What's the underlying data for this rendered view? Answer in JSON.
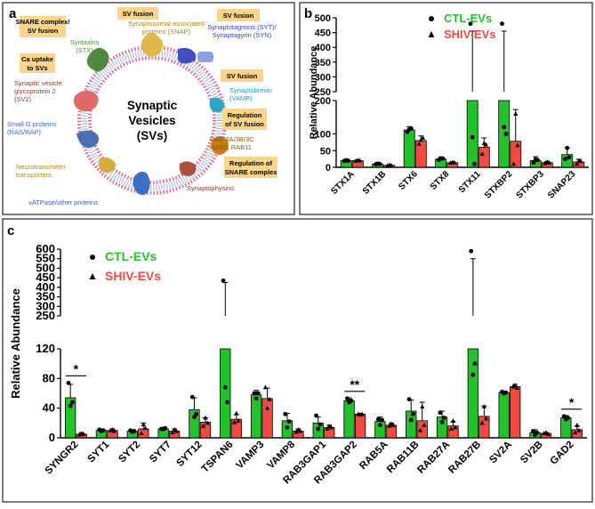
{
  "panel_a": {
    "letter": "a",
    "center_label_1": "Synaptic",
    "center_label_2": "Vesicles",
    "center_label_3": "(SVs)",
    "boxes": {
      "snare_sv_fusion_1": "SNARE complex/",
      "snare_sv_fusion_2": "SV fusion",
      "sv_fusion_top": "SV fusion",
      "sv_fusion_right": "SV fusion",
      "sv_fusion_right2": "SV fusion",
      "ca_uptake_1": "Ca uptake",
      "ca_uptake_2": "to SVs",
      "reg_sv_fusion_1": "Regulation",
      "reg_sv_fusion_2": "of SV fusion",
      "reg_snare_1": "Regulation of",
      "reg_snare_2": "SNARE complex"
    },
    "labels": {
      "syntaxins_1": "Syntaxins",
      "syntaxins_2": "(STX)",
      "snap_1": "Synaptosomal-associated",
      "snap_2": "proteins (SNAP)",
      "syt_1": "Synaptotagmins (SYT)/",
      "syt_2": "Synaptogyrin (SYN)",
      "sv2_1": "Synaptic vesicle",
      "sv2_2": "glycoprotein 2",
      "sv2_3": "(SV2)",
      "vamp_1": "Synaptobrevin",
      "vamp_2": "(VAMP)",
      "small_g_1": "Small G proteins",
      "small_g_2": "(RAS/RAP)",
      "rab_1": "RAB 3A/3B/3C",
      "rab_2": "RAB5, RAB11",
      "nt_1": "Neurotransmitter",
      "nt_2": "transporters",
      "syp": "Synaptophysins",
      "vatpase": "vATPase/other proteins"
    },
    "colors": {
      "syntaxin": "#4f8a3c",
      "snap": "#e0b84a",
      "syt": "#3f4fbf",
      "sv2": "#e06a6a",
      "vamp": "#2aa6c9",
      "small_g": "#4a6fb5",
      "rab": "#c87d12",
      "nt": "#d9ac3a",
      "syp": "#a8543a",
      "vatpase": "#3b6ec5",
      "lipid": "#e0609a",
      "box": "#fcd58a"
    }
  },
  "chart_data": [
    {
      "panel": "b",
      "type": "bar",
      "ylabel": "Relative Abundance",
      "categories": [
        "STX1A",
        "STX1B",
        "STX6",
        "STX8",
        "STX11",
        "STXBP2",
        "STXBP3",
        "SNAP23"
      ],
      "yticks_lower": [
        "0",
        "50",
        "100",
        "200"
      ],
      "yticks_upper": [
        "250",
        "300",
        "350",
        "400",
        "450",
        "500"
      ],
      "ylim_lower": [
        0,
        200
      ],
      "ylim_upper": [
        250,
        500
      ],
      "series": [
        {
          "name": "CTL-EVs",
          "color": "#22c22a",
          "values": [
            20,
            10,
            112,
            25,
            250,
            250,
            20,
            38
          ],
          "errors": [
            3,
            3,
            10,
            6,
            205,
            205,
            12,
            20
          ],
          "points": [
            [
              19,
              21,
              20
            ],
            [
              9,
              11,
              10
            ],
            [
              106,
              114,
              116
            ],
            [
              22,
              27,
              26
            ],
            [
              480,
              90,
              10
            ],
            [
              480,
              120,
              100
            ],
            [
              14,
              24,
              22
            ],
            [
              25,
              58,
              30
            ]
          ]
        },
        {
          "name": "SHIV-EVs",
          "color": "#f04a42",
          "values": [
            20,
            6,
            80,
            14,
            60,
            78,
            14,
            16
          ],
          "errors": [
            3,
            2,
            14,
            3,
            28,
            95,
            4,
            8
          ],
          "points": [
            [
              19,
              21,
              20
            ],
            [
              5,
              7,
              6
            ],
            [
              70,
              82,
              88
            ],
            [
              13,
              15,
              14
            ],
            [
              40,
              72,
              68
            ],
            [
              10,
              160,
              66
            ],
            [
              12,
              16,
              14
            ],
            [
              10,
              20,
              18
            ]
          ]
        }
      ],
      "legend": [
        "CTL-EVs",
        "SHIV-EVs"
      ],
      "legend_position": "top-right"
    },
    {
      "panel": "c",
      "type": "bar",
      "ylabel": "Relative Abundance",
      "categories": [
        "SYNGR2",
        "SYT1",
        "SYT2",
        "SYT7",
        "SYT12",
        "TSPAN6",
        "VAMP3",
        "VAMP8",
        "RAB3GAP1",
        "RAB3GAP2",
        "RAB5A",
        "RAB11B",
        "RAB27A",
        "RAB27B",
        "SV2A",
        "SV2B",
        "GAD2"
      ],
      "yticks_lower": [
        "0",
        "40",
        "80",
        "120"
      ],
      "yticks_upper": [
        "250",
        "300",
        "350",
        "400",
        "450",
        "500",
        "550",
        "600"
      ],
      "ylim_lower": [
        0,
        120
      ],
      "ylim_upper": [
        250,
        600
      ],
      "series": [
        {
          "name": "CTL-EVs",
          "color": "#22c22a",
          "values": [
            54,
            10,
            9,
            12,
            38,
            250,
            58,
            23,
            20,
            50,
            22,
            36,
            28,
            250,
            61,
            7,
            27
          ],
          "errors": [
            18,
            2,
            2,
            2,
            16,
            175,
            6,
            10,
            8,
            4,
            6,
            15,
            8,
            300,
            2,
            4,
            3
          ],
          "points": [
            [
              74,
              43,
              48
            ],
            [
              11,
              9,
              10
            ],
            [
              10,
              8,
              9
            ],
            [
              12,
              12,
              13
            ],
            [
              55,
              28,
              32
            ],
            [
              435,
              68,
              48
            ],
            [
              60,
              53,
              60
            ],
            [
              32,
              14,
              22
            ],
            [
              30,
              12,
              18
            ],
            [
              53,
              48,
              50
            ],
            [
              25,
              17,
              24
            ],
            [
              52,
              24,
              32
            ],
            [
              34,
              21,
              27
            ],
            [
              590,
              85,
              100
            ],
            [
              62,
              60,
              61
            ],
            [
              9,
              4,
              7
            ],
            [
              29,
              25,
              27
            ]
          ]
        },
        {
          "name": "SHIV-EVs",
          "color": "#f04a42",
          "values": [
            5,
            10,
            12,
            9,
            21,
            25,
            53,
            9,
            14,
            32,
            17,
            23,
            16,
            29,
            69,
            6,
            11
          ],
          "errors": [
            2,
            2,
            8,
            3,
            6,
            6,
            14,
            3,
            3,
            1,
            3,
            25,
            6,
            14,
            3,
            1,
            5
          ],
          "points": [
            [
              4,
              6,
              5
            ],
            [
              10,
              11,
              9
            ],
            [
              6,
              18,
              13
            ],
            [
              7,
              11,
              9
            ],
            [
              16,
              27,
              20
            ],
            [
              21,
              33,
              23
            ],
            [
              68,
              40,
              52
            ],
            [
              8,
              11,
              9
            ],
            [
              12,
              16,
              14
            ],
            [
              32,
              31,
              32
            ],
            [
              16,
              19,
              17
            ],
            [
              10,
              42,
              17
            ],
            [
              12,
              23,
              14
            ],
            [
              20,
              42,
              26
            ],
            [
              69,
              71,
              67
            ],
            [
              6,
              7,
              5
            ],
            [
              7,
              17,
              10
            ]
          ]
        }
      ],
      "legend": [
        "CTL-EVs",
        "SHIV-EVs"
      ],
      "legend_position": "top-left",
      "significance": [
        {
          "category": "SYNGR2",
          "label": "*"
        },
        {
          "category": "RAB3GAP2",
          "label": "**"
        },
        {
          "category": "GAD2",
          "label": "*"
        }
      ]
    }
  ]
}
